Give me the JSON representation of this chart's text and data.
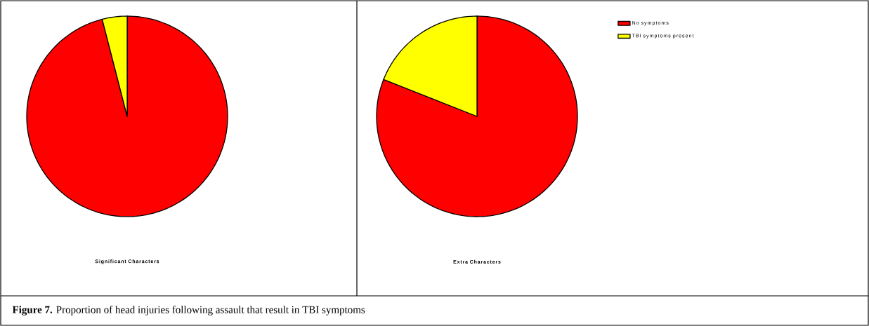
{
  "chart_data": [
    {
      "type": "pie",
      "title": "Significant Characters",
      "categories": [
        null,
        null
      ],
      "values": [
        96,
        4
      ],
      "colors": [
        "#ff0000",
        "#ffff00"
      ],
      "annotations": [
        "**Figure 7.** Proportion of head injuries following assault that result in TBI symptoms"
      ]
    },
    {
      "type": "pie",
      "title": "Extra Characters",
      "categories": [
        "No symptoms",
        "TBI symptoms present"
      ],
      "values": [
        81,
        19
      ],
      "colors": [
        "#ff0000",
        "#ffff00"
      ],
      "legend": "top right"
    }
  ]
}
